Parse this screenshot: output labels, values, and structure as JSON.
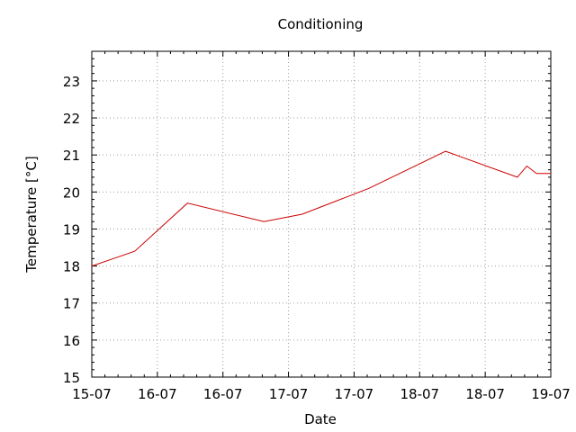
{
  "chart_data": {
    "type": "line",
    "title": "Conditioning",
    "xlabel": "Date",
    "ylabel": "Temperature [°C]",
    "x_tick_labels": [
      "15-07",
      "16-07",
      "16-07",
      "17-07",
      "17-07",
      "18-07",
      "18-07",
      "19-07"
    ],
    "y_ticks": [
      15,
      16,
      17,
      18,
      19,
      20,
      21,
      22,
      23
    ],
    "xlim": [
      "2021-07-15 00:00",
      "2021-07-19 00:00"
    ],
    "ylim": [
      15,
      23.8
    ],
    "grid": true,
    "series": [
      {
        "color": "#cc0000",
        "x": [
          "2021-07-15 00:00",
          "2021-07-15 09:00",
          "2021-07-15 20:00",
          "2021-07-16 12:00",
          "2021-07-16 20:00",
          "2021-07-17 10:00",
          "2021-07-18 02:00",
          "2021-07-18 17:00",
          "2021-07-18 19:00",
          "2021-07-18 20:00",
          "2021-07-18 21:00",
          "2021-07-19 00:00"
        ],
        "values": [
          18.0,
          18.4,
          19.7,
          19.2,
          19.4,
          20.1,
          21.1,
          20.4,
          20.7,
          20.6,
          20.5,
          20.5
        ]
      }
    ]
  }
}
